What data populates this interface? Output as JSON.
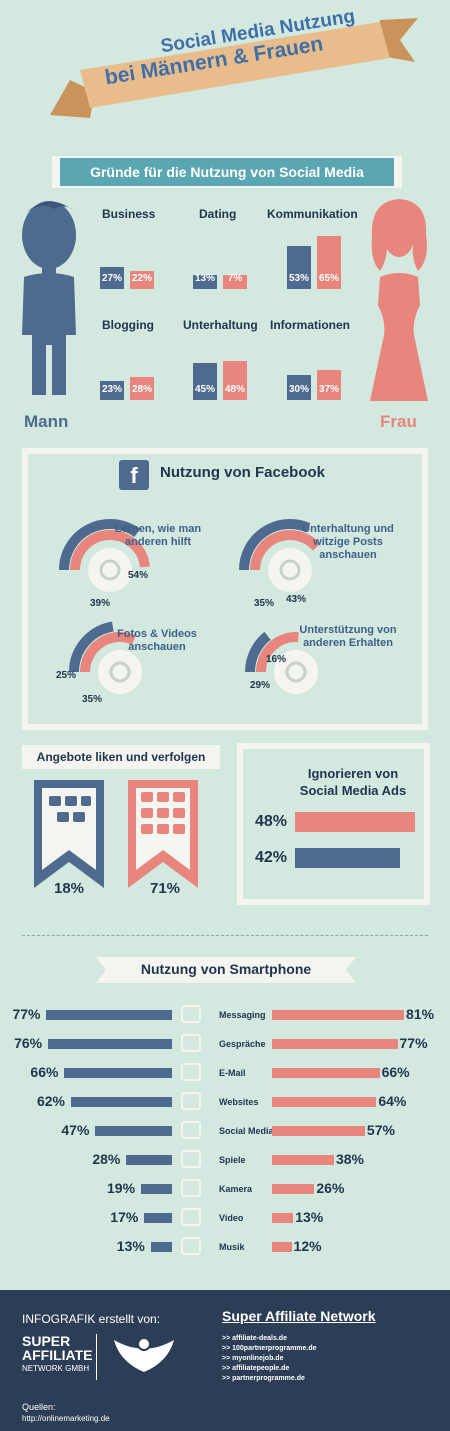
{
  "header": {
    "title_line1": "Social Media Nutzung",
    "title_line2": "bei Männern & Frauen"
  },
  "reasons": {
    "title": "Gründe für die Nutzung von Social Media",
    "male_label": "Mann",
    "female_label": "Frau"
  },
  "facebook": {
    "title": "Nutzung von Facebook",
    "icon_letter": "f",
    "items": [
      {
        "label": "Lernen, wie man anderen hilft",
        "male": "39%",
        "female": "54%"
      },
      {
        "label": "Unterhaltung und witzige Posts anschauen",
        "male": "35%",
        "female": "43%"
      },
      {
        "label": "Fotos & Videos anschauen",
        "male": "25%",
        "female": "35%"
      },
      {
        "label": "Unterstützung von anderen Erhalten",
        "male": "16%",
        "female": "29%"
      }
    ]
  },
  "likes": {
    "title": "Angebote liken und verfolgen",
    "male": "18%",
    "female": "71%"
  },
  "ads": {
    "title_line1": "Ignorieren von",
    "title_line2": "Social Media Ads",
    "female": "48%",
    "male": "42%",
    "female_value": 48,
    "male_value": 42
  },
  "smartphone_title": "Nutzung von Smartphone",
  "footer": {
    "created_by": "INFOGRAFIK erstellt von:",
    "brand_line1": "SUPER",
    "brand_line2": "AFFILIATE",
    "brand_line3": "NETWORK GMBH",
    "network_title": "Super Affiliate Network",
    "links": [
      ">> affiliate-deals.de",
      ">> 100partnerprogramme.de",
      ">> myonlinejob.de",
      ">> affiliatepeople.de",
      ">> partnerprogramme.de"
    ],
    "sources_label": "Quellen:",
    "source_url": "http://onlinemarketing.de"
  },
  "chart_data": [
    {
      "type": "bar",
      "title": "Gründe für die Nutzung von Social Media",
      "categories": [
        "Business",
        "Dating",
        "Kommunikation",
        "Blogging",
        "Unterhaltung",
        "Informationen"
      ],
      "series": [
        {
          "name": "Mann",
          "values": [
            27,
            13,
            53,
            23,
            45,
            30
          ]
        },
        {
          "name": "Frau",
          "values": [
            22,
            7,
            65,
            28,
            48,
            37
          ]
        }
      ],
      "value_labels": {
        "Mann": [
          "27%",
          "13%",
          "53%",
          "23%",
          "45%",
          "30%"
        ],
        "Frau": [
          "22%",
          "7%",
          "65%",
          "28%",
          "48%",
          "37%"
        ]
      },
      "colors": {
        "Mann": "#4e6b8f",
        "Frau": "#e8857c"
      }
    },
    {
      "type": "bar",
      "title": "Nutzung von Smartphone",
      "categories": [
        "Messaging",
        "Gespräche",
        "E-Mail",
        "Websites",
        "Social Media",
        "Spiele",
        "Kamera",
        "Video",
        "Musik"
      ],
      "icons": [
        "envelope-icon",
        "speech-bubble-icon",
        "at-sign-icon",
        "browser-icon",
        "facebook-icon",
        "monitor-icon",
        "camera-icon",
        "play-icon",
        "music-note-icon"
      ],
      "series": [
        {
          "name": "Mann",
          "values": [
            77,
            76,
            66,
            62,
            47,
            28,
            19,
            17,
            13
          ]
        },
        {
          "name": "Frau",
          "values": [
            81,
            77,
            66,
            64,
            57,
            38,
            26,
            13,
            12
          ]
        }
      ],
      "colors": {
        "Mann": "#4e6b8f",
        "Frau": "#e8857c"
      }
    }
  ]
}
